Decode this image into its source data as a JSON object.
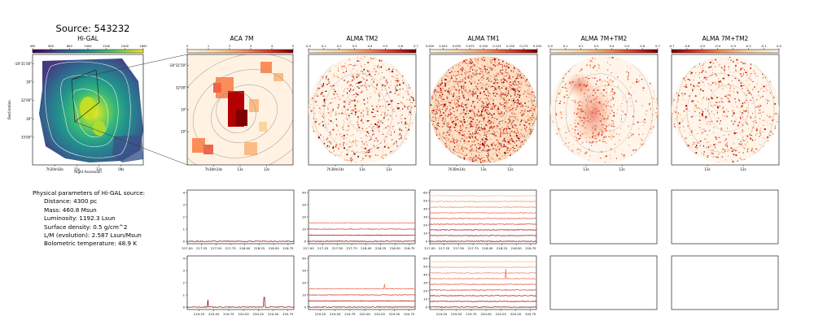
{
  "source_title": "Source: 543232",
  "chart_data": [
    {
      "type": "heatmap",
      "title": "Hi-GAL",
      "colorbar_ticks": [
        "400",
        "600",
        "800",
        "1000",
        "1200",
        "1400",
        "1600"
      ],
      "colormap": "viridis",
      "xlabel": "Right Ascension",
      "ylabel": "Declination",
      "x_ticks": [
        "7h30m18s",
        "15s",
        "12s",
        "09s"
      ],
      "y_ticks": [
        "-18°31'00\"",
        "30\"",
        "32'00\"",
        "30\"",
        "33'00\""
      ]
    },
    {
      "type": "heatmap",
      "title": "ACA 7M",
      "colorbar_ticks": [
        "0",
        "1",
        "2",
        "3",
        "4",
        "5"
      ],
      "colormap": "OrRd",
      "x_ticks": [
        "7h30m14s",
        "13s",
        "12s"
      ],
      "y_ticks": [
        "-18°31'50\"",
        "32'00\"",
        "10\"",
        "20\""
      ]
    },
    {
      "type": "heatmap",
      "title": "ALMA TM2",
      "colorbar_ticks": [
        "0.0",
        "0.1",
        "0.2",
        "0.3",
        "0.4",
        "0.5",
        "0.6",
        "0.7"
      ],
      "colormap": "OrRd",
      "x_ticks": [
        "7h30m14s",
        "13s",
        "12s"
      ]
    },
    {
      "type": "heatmap",
      "title": "ALMA TM1",
      "colorbar_ticks": [
        "0.000",
        "0.025",
        "0.050",
        "0.075",
        "0.100",
        "0.125",
        "0.150",
        "0.175",
        "0.200"
      ],
      "colormap": "OrRd",
      "x_ticks": [
        "7h30m14s",
        "13s",
        "12s"
      ]
    },
    {
      "type": "heatmap",
      "title": "ALMA 7M+TM2",
      "colorbar_ticks": [
        "0.0",
        "0.1",
        "0.2",
        "0.3",
        "0.4",
        "0.5",
        "0.6",
        "0.7"
      ],
      "colormap": "OrRd",
      "x_ticks": [
        "13s",
        "12s"
      ]
    },
    {
      "type": "heatmap",
      "title": "ALMA 7M+TM2",
      "colorbar_ticks": [
        "-0.7",
        "-0.6",
        "-0.5",
        "-0.4",
        "-0.3",
        "-0.2",
        "-0.1",
        "0.0"
      ],
      "colormap": "OrRd_r",
      "x_ticks": [
        "13s",
        "12s"
      ]
    },
    {
      "type": "line",
      "panel": "ACA 7M spectrum, band 1",
      "x_ticks": [
        217.0,
        217.25,
        217.5,
        217.75,
        218.0,
        218.25,
        218.5,
        218.75
      ],
      "xlim": [
        217.0,
        218.85
      ],
      "y_ticks": [
        0,
        1,
        2,
        3,
        4
      ],
      "ylim": [
        -0.2,
        4.2
      ],
      "series": [
        {
          "color": "#7f0000",
          "offset": 0,
          "spikes": []
        }
      ]
    },
    {
      "type": "line",
      "panel": "ACA 7M spectrum, band 2",
      "x_ticks": [
        219.25,
        219.5,
        219.75,
        220.0,
        220.25,
        220.5,
        220.75
      ],
      "xlim": [
        219.05,
        220.85
      ],
      "y_ticks": [
        0,
        1,
        2,
        3,
        4
      ],
      "ylim": [
        -0.2,
        4.2
      ],
      "series": [
        {
          "color": "#7f0000",
          "offset": 0,
          "spikes": [
            {
              "x": 219.4,
              "h": 0.6
            },
            {
              "x": 220.35,
              "h": 0.8
            }
          ]
        }
      ]
    },
    {
      "type": "line",
      "panel": "ALMA TM2 spectra, band 1",
      "x_ticks": [
        217.0,
        217.25,
        217.5,
        217.75,
        218.0,
        218.25,
        218.5,
        218.75
      ],
      "xlim": [
        217.0,
        218.85
      ],
      "y_ticks": [
        0,
        10,
        20,
        30,
        40
      ],
      "ylim": [
        -2,
        42
      ],
      "series": [
        {
          "color": "#7f0000",
          "offset": 0,
          "spikes": []
        },
        {
          "color": "#b30000",
          "offset": 5,
          "spikes": []
        },
        {
          "color": "#d7301f",
          "offset": 10,
          "spikes": []
        },
        {
          "color": "#ef6548",
          "offset": 15,
          "spikes": []
        }
      ]
    },
    {
      "type": "line",
      "panel": "ALMA TM2 spectra, band 2",
      "x_ticks": [
        219.25,
        219.5,
        219.75,
        220.0,
        220.25,
        220.5,
        220.75
      ],
      "xlim": [
        219.05,
        220.85
      ],
      "y_ticks": [
        0,
        10,
        20,
        30,
        40
      ],
      "ylim": [
        -2,
        42
      ],
      "series": [
        {
          "color": "#7f0000",
          "offset": 0,
          "spikes": []
        },
        {
          "color": "#b30000",
          "offset": 5,
          "spikes": []
        },
        {
          "color": "#d7301f",
          "offset": 10,
          "spikes": []
        },
        {
          "color": "#ef6548",
          "offset": 15,
          "spikes": [
            {
              "x": 220.33,
              "h": 4
            }
          ]
        }
      ]
    },
    {
      "type": "line",
      "panel": "ALMA TM1 spectra, band 1",
      "x_ticks": [
        217.0,
        217.25,
        217.5,
        217.75,
        218.0,
        218.25,
        218.5,
        218.75
      ],
      "xlim": [
        217.0,
        218.85
      ],
      "y_ticks": [
        0,
        10,
        20,
        30,
        40,
        50,
        60
      ],
      "ylim": [
        -3,
        63
      ],
      "series": [
        {
          "color": "#7f0000",
          "offset": 0,
          "spikes": []
        },
        {
          "color": "#990000",
          "offset": 7,
          "spikes": []
        },
        {
          "color": "#b30000",
          "offset": 14,
          "spikes": []
        },
        {
          "color": "#d7301f",
          "offset": 21,
          "spikes": []
        },
        {
          "color": "#e34a33",
          "offset": 28,
          "spikes": []
        },
        {
          "color": "#ef6548",
          "offset": 35,
          "spikes": []
        },
        {
          "color": "#f27a5d",
          "offset": 42,
          "spikes": []
        },
        {
          "color": "#fc8d59",
          "offset": 49,
          "spikes": []
        },
        {
          "color": "#fdbb84",
          "offset": 56,
          "spikes": []
        }
      ]
    },
    {
      "type": "line",
      "panel": "ALMA TM1 spectra, band 2",
      "x_ticks": [
        219.25,
        219.5,
        219.75,
        220.0,
        220.25,
        220.5,
        220.75
      ],
      "xlim": [
        219.05,
        220.85
      ],
      "y_ticks": [
        0,
        10,
        20,
        30,
        40,
        50,
        60
      ],
      "ylim": [
        -3,
        63
      ],
      "series": [
        {
          "color": "#7f0000",
          "offset": 0,
          "spikes": []
        },
        {
          "color": "#990000",
          "offset": 7,
          "spikes": []
        },
        {
          "color": "#b30000",
          "offset": 14,
          "spikes": []
        },
        {
          "color": "#d7301f",
          "offset": 21,
          "spikes": []
        },
        {
          "color": "#e34a33",
          "offset": 28,
          "spikes": []
        },
        {
          "color": "#ef6548",
          "offset": 35,
          "spikes": [
            {
              "x": 220.33,
              "h": 12
            }
          ]
        },
        {
          "color": "#f27a5d",
          "offset": 42,
          "spikes": []
        },
        {
          "color": "#fc8d59",
          "offset": 49,
          "spikes": []
        },
        {
          "color": "#fdbb84",
          "offset": 56,
          "spikes": []
        }
      ]
    },
    {
      "type": "line",
      "panel": "ALMA 7M+TM2 (empty), band 1",
      "series": []
    },
    {
      "type": "line",
      "panel": "ALMA 7M+TM2 (empty), band 2",
      "series": []
    },
    {
      "type": "line",
      "panel": "ALMA 7M+TM2 residual (empty), band 1",
      "series": []
    },
    {
      "type": "line",
      "panel": "ALMA 7M+TM2 residual (empty), band 2",
      "series": []
    }
  ],
  "params": {
    "header": "Physical parameters of Hi-GAL source:",
    "distance": "Distance: 4300 pc",
    "mass": "Mass: 460.8 Msun",
    "luminosity": "Luminosity: 1192.3 Lsun",
    "surface_density": "Surface density: 0.5 g/cm^2",
    "lm": "L/M (evolution): 2.587 Lsun/Msun",
    "tbol": "Bolometric temperature: 48.9 K"
  }
}
